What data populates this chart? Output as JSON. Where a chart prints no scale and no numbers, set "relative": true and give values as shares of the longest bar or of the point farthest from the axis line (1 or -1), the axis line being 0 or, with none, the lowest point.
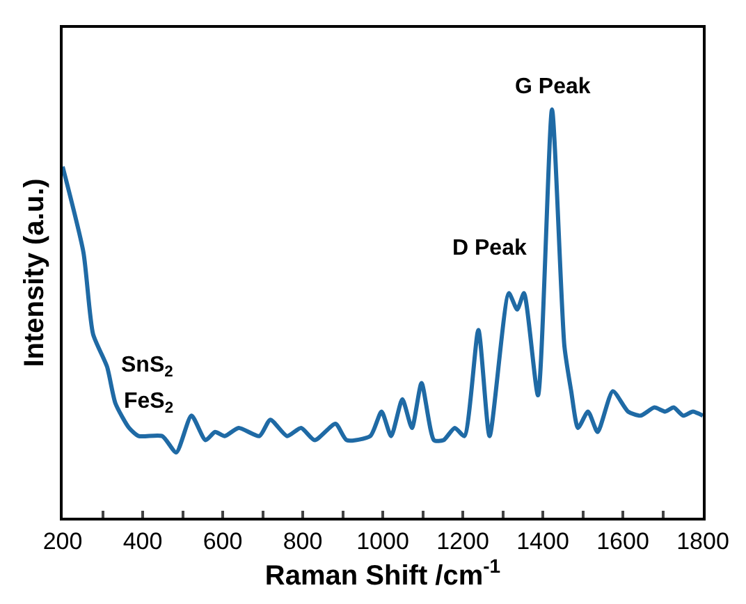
{
  "chart_data": {
    "type": "line",
    "relative": true,
    "xlabel": "Raman Shift /cm$^{-1}$",
    "ylabel": "Intensity (a.u.)",
    "xlim": [
      200,
      1800
    ],
    "xticks": [
      200,
      {
        "value": 300,
        "label": null
      },
      400,
      {
        "value": 500,
        "label": null
      },
      600,
      {
        "value": 700,
        "label": null
      },
      800,
      {
        "value": 900,
        "label": null
      },
      1000,
      {
        "value": 1100,
        "label": null
      },
      1200,
      {
        "value": 1300,
        "label": null
      },
      1400,
      {
        "value": 1500,
        "label": null
      },
      1600,
      {
        "value": 1700,
        "label": null
      },
      1800
    ],
    "tick_labels": "x",
    "marker": "none",
    "line_style": "solid",
    "series": [
      {
        "color": "#1f6aa5",
        "x": [
          200,
          252,
          276,
          311,
          332,
          366,
          390,
          449,
          484,
          522,
          557,
          581,
          605,
          640,
          692,
          719,
          761,
          796,
          830,
          882,
          910,
          969,
          997,
          1021,
          1049,
          1073,
          1097,
          1128,
          1152,
          1180,
          1204,
          1239,
          1267,
          1315,
          1336,
          1353,
          1388,
          1423,
          1454,
          1471,
          1488,
          1513,
          1537,
          1575,
          1613,
          1644,
          1679,
          1706,
          1727,
          1751,
          1775,
          1800
        ],
        "values": [
          0.86,
          0.65,
          0.45,
          0.37,
          0.28,
          0.22,
          0.2,
          0.2,
          0.16,
          0.25,
          0.19,
          0.21,
          0.2,
          0.22,
          0.2,
          0.24,
          0.2,
          0.22,
          0.19,
          0.23,
          0.19,
          0.2,
          0.26,
          0.2,
          0.29,
          0.22,
          0.33,
          0.19,
          0.19,
          0.22,
          0.2,
          0.46,
          0.2,
          0.55,
          0.51,
          0.55,
          0.3,
          1.0,
          0.42,
          0.31,
          0.22,
          0.26,
          0.21,
          0.31,
          0.26,
          0.25,
          0.27,
          0.26,
          0.27,
          0.25,
          0.26,
          0.25
        ]
      }
    ],
    "annotations": [
      {
        "text": "G Peak",
        "x": 1423,
        "y": 1.0
      },
      {
        "text": "D Peak",
        "x": 1315,
        "y": 0.55
      },
      {
        "text": "SnS$_{2}$",
        "x": 311,
        "y": 0.37
      },
      {
        "text": "FeS$_{2}$",
        "x": 332,
        "y": 0.28
      }
    ]
  }
}
